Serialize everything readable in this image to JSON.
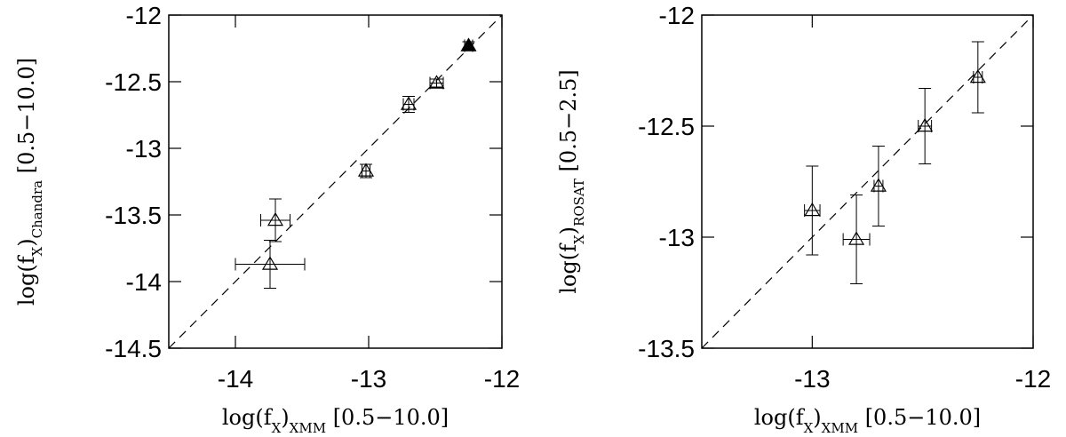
{
  "chart_data": [
    {
      "type": "scatter",
      "xlabel": [
        "log(f",
        "X",
        ")",
        "XMM",
        " [0.5−10.0]"
      ],
      "ylabel": [
        "log(f",
        "X",
        ")",
        "Chandra",
        " [0.5−10.0]"
      ],
      "xlim": [
        -14.5,
        -12
      ],
      "ylim": [
        -14.5,
        -12
      ],
      "xticks": [
        -14,
        -13,
        -12
      ],
      "yticks": [
        -14.5,
        -14,
        -13.5,
        -13,
        -12.5,
        -12
      ],
      "identity_line": true,
      "x": [
        -13.7,
        -13.74,
        -13.02,
        -12.7,
        -12.49,
        -12.25
      ],
      "y": [
        -13.54,
        -13.87,
        -13.17,
        -12.67,
        -12.51,
        -12.23
      ],
      "xerr": [
        0.11,
        0.26,
        0.03,
        0.04,
        0.05,
        0.03
      ],
      "yerr": [
        0.16,
        0.18,
        0.05,
        0.06,
        0.03,
        0.03
      ],
      "filled": [
        false,
        false,
        false,
        false,
        false,
        true
      ]
    },
    {
      "type": "scatter",
      "xlabel": [
        "log(f",
        "X",
        ")",
        "XMM",
        " [0.5−10.0]"
      ],
      "ylabel": [
        "log(f",
        "X",
        ")",
        "ROSAT",
        " [0.5−2.5]"
      ],
      "xlim": [
        -13.5,
        -12
      ],
      "ylim": [
        -13.5,
        -12
      ],
      "xticks": [
        -13,
        -12
      ],
      "yticks": [
        -13.5,
        -13,
        -12.5,
        -12
      ],
      "identity_line": true,
      "x": [
        -13.0,
        -12.8,
        -12.7,
        -12.49,
        -12.25
      ],
      "y": [
        -12.88,
        -13.01,
        -12.77,
        -12.5,
        -12.28
      ],
      "xerr": [
        0.035,
        0.06,
        0.02,
        0.03,
        0.02
      ],
      "yerr": [
        0.2,
        0.2,
        0.18,
        0.17,
        0.16
      ],
      "filled": [
        false,
        false,
        false,
        false,
        false
      ]
    }
  ]
}
